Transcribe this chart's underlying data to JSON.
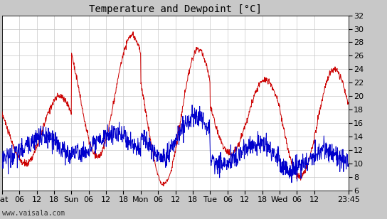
{
  "title": "Temperature and Dewpoint [°C]",
  "watermark": "www.vaisala.com",
  "ylim": [
    6,
    32
  ],
  "yticks": [
    6,
    8,
    10,
    12,
    14,
    16,
    18,
    20,
    22,
    24,
    26,
    28,
    30,
    32
  ],
  "background_color": "#c8c8c8",
  "plot_bg_color": "#ffffff",
  "grid_color": "#c8c8c8",
  "temp_color": "#cc0000",
  "dewp_color": "#0000cc",
  "title_fontsize": 10,
  "tick_fontsize": 8,
  "watermark_fontsize": 7,
  "x_tick_labels": [
    "Sat",
    "06",
    "12",
    "18",
    "Sun",
    "06",
    "12",
    "18",
    "Mon",
    "06",
    "12",
    "18",
    "Tue",
    "06",
    "12",
    "18",
    "Wed",
    "06",
    "12",
    "23:45"
  ],
  "x_tick_positions": [
    0,
    6,
    12,
    18,
    24,
    30,
    36,
    42,
    48,
    54,
    60,
    66,
    72,
    78,
    84,
    90,
    96,
    102,
    108,
    119.75
  ],
  "xlim": [
    0,
    119.75
  ],
  "n_points": 1150,
  "figwidth": 5.44,
  "figheight": 3.08,
  "dpi": 100
}
